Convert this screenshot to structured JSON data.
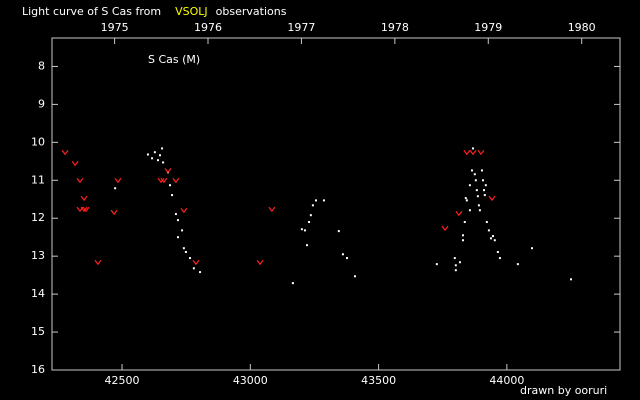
{
  "chart_data": {
    "type": "scatter",
    "title": [
      "Light curve of S Cas from",
      "VSOLJ",
      "observations"
    ],
    "title_colors": [
      "#ffffff",
      "#ffff00",
      "#ffffff"
    ],
    "annotation": "S Cas (M)",
    "credit": "drawn by ooruri",
    "credit_color": "#00ffff",
    "background": "#000000",
    "axis_color": "#c8c8c8",
    "xlim": [
      42227,
      44441
    ],
    "xticks": [
      42500,
      43000,
      43500,
      44000
    ],
    "x2lim": [
      1974.33,
      1980.41
    ],
    "x2ticks": [
      1975,
      1976,
      1977,
      1978,
      1979,
      1980
    ],
    "ylim": [
      16,
      7.25
    ],
    "yticks": [
      8,
      9,
      10,
      11,
      12,
      13,
      14,
      15,
      16
    ],
    "series": [
      {
        "color": "#ffffff",
        "marker": "dot",
        "x": [
          42601,
          42617,
          42628,
          42640,
          42656,
          42648,
          42660,
          42679,
          42687,
          42695,
          42710,
          42718,
          42718,
          42734,
          42741,
          42749,
          42765,
          42780,
          42804,
          43166,
          43201,
          43213,
          43221,
          43229,
          43236,
          43244,
          43256,
          43287,
          43345,
          43361,
          43377,
          43408,
          43727,
          43797,
          43801,
          43801,
          43817,
          43829,
          43829,
          43836,
          43844,
          43856,
          43864,
          43868,
          43875,
          43879,
          43883,
          43887,
          43891,
          43895,
          43903,
          43907,
          43911,
          43914,
          43918,
          43922,
          43930,
          43938,
          43946,
          43953,
          43965,
          43973,
          44043,
          44098,
          44250,
          43840,
          43856,
          42473
        ],
        "values": [
          10.32,
          10.42,
          10.26,
          10.47,
          10.16,
          10.34,
          10.53,
          10.79,
          11.13,
          11.39,
          11.89,
          12.05,
          12.5,
          12.32,
          12.79,
          12.89,
          13.05,
          13.32,
          13.42,
          13.71,
          12.29,
          12.32,
          12.71,
          12.1,
          11.92,
          11.66,
          11.53,
          11.53,
          12.34,
          12.95,
          13.05,
          13.53,
          13.21,
          13.05,
          13.24,
          13.37,
          13.16,
          12.58,
          12.45,
          12.1,
          11.53,
          11.13,
          10.74,
          10.16,
          10.84,
          11.0,
          11.26,
          11.42,
          11.66,
          11.79,
          10.74,
          11.0,
          11.26,
          11.39,
          11.13,
          12.1,
          12.32,
          12.53,
          12.47,
          12.58,
          12.89,
          13.05,
          13.21,
          12.79,
          13.61,
          11.47,
          11.79,
          11.21
        ]
      },
      {
        "color": "#ff2020",
        "marker": "v",
        "x": [
          42278,
          42317,
          42336,
          42352,
          42336,
          42352,
          42360,
          42406,
          42469,
          42484,
          42652,
          42663,
          42679,
          42710,
          42741,
          42788,
          43038,
          43084,
          43759,
          43813,
          43844,
          43868,
          43899,
          43942
        ],
        "values": [
          10.26,
          10.55,
          11.0,
          11.47,
          11.76,
          11.76,
          11.76,
          13.16,
          11.84,
          11.0,
          11.0,
          11.0,
          10.74,
          11.0,
          11.79,
          13.16,
          13.16,
          11.76,
          12.26,
          11.87,
          10.26,
          10.26,
          10.26,
          11.47
        ]
      }
    ]
  }
}
